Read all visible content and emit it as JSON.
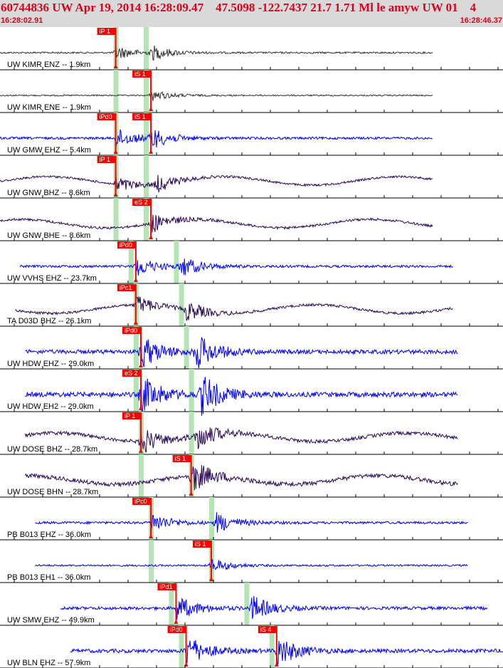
{
  "header": {
    "title": "60744836 UW Apr 19, 2014 16:28:09.47    47.5098 -122.7437 21.7 1.71 Ml le amyw UW 01    4",
    "start_time": "16:28:02.91",
    "end_time": "16:28:46.37"
  },
  "colors": {
    "pick": "#ff0000",
    "window": "#b5e3b5",
    "blue_trace": "#0000ff",
    "dark_trace": "#333333",
    "purple_trace": "#2a0a55"
  },
  "traces": [
    {
      "label": "UW KIMR ENZ -- 1.9km",
      "color": "dark",
      "picks": [
        {
          "text": "iP 1"
        }
      ],
      "start": 0,
      "end": 0.86,
      "events": [
        0.23,
        0.3
      ],
      "amp": 10
    },
    {
      "label": "UW KIMR ENE -- 1.9km",
      "color": "dark",
      "picks": [
        {
          "text": "iS 1"
        }
      ],
      "start": 0,
      "end": 0.86,
      "events": [
        0.3
      ],
      "amp": 8
    },
    {
      "label": "UW GMW EHZ -- 5.4km",
      "color": "blue",
      "picks": [
        {
          "text": "iPd0"
        },
        {
          "text": "iS 1"
        }
      ],
      "start": 0,
      "end": 0.86,
      "events": [
        0.23,
        0.3
      ],
      "amp": 14
    },
    {
      "label": "UW GNW BHZ -- 8.6km",
      "color": "purple",
      "picks": [
        {
          "text": "iP 1"
        }
      ],
      "start": 0,
      "end": 0.86,
      "events": [
        0.23,
        0.31
      ],
      "amp": 12
    },
    {
      "label": "UW GNW BHE -- 8.6km",
      "color": "purple",
      "picks": [
        {
          "text": "eS 2"
        }
      ],
      "start": 0,
      "end": 0.86,
      "events": [
        0.3
      ],
      "amp": 14
    },
    {
      "label": "UW VVHS EHZ -- 23.7km",
      "color": "blue",
      "picks": [
        {
          "text": "iPd0"
        }
      ],
      "start": 0.04,
      "end": 0.9,
      "events": [
        0.27,
        0.36
      ],
      "amp": 14
    },
    {
      "label": "TA D03D BHZ -- 26.1km",
      "color": "purple",
      "picks": [
        {
          "text": "iPc1"
        }
      ],
      "start": 0.03,
      "end": 0.9,
      "events": [
        0.27,
        0.37
      ],
      "amp": 14
    },
    {
      "label": "UW HDW EHZ -- 29.0km",
      "color": "blue",
      "picks": [
        {
          "text": "iPd0"
        }
      ],
      "start": 0.05,
      "end": 0.91,
      "events": [
        0.28,
        0.39
      ],
      "amp": 24
    },
    {
      "label": "UW HDW EH2 -- 29.0km",
      "color": "blue",
      "picks": [
        {
          "text": "eS 2"
        }
      ],
      "start": 0.05,
      "end": 0.91,
      "events": [
        0.28,
        0.4
      ],
      "amp": 28
    },
    {
      "label": "UW DOSE BHZ -- 28.7km",
      "color": "purple",
      "picks": [
        {
          "text": "iP 1"
        }
      ],
      "start": 0.05,
      "end": 0.91,
      "events": [
        0.28,
        0.39
      ],
      "amp": 20
    },
    {
      "label": "UW DOSE BHN -- 28.7km",
      "color": "purple",
      "picks": [
        {
          "text": "iS 1"
        }
      ],
      "start": 0.05,
      "end": 0.91,
      "events": [
        0.38
      ],
      "amp": 24
    },
    {
      "label": "PB B013 EHZ -- 36.0km",
      "color": "blue",
      "picks": [
        {
          "text": "iPc0"
        }
      ],
      "start": 0.07,
      "end": 0.93,
      "events": [
        0.3,
        0.43
      ],
      "amp": 14
    },
    {
      "label": "PB B013 EH1 -- 36.0km",
      "color": "blue",
      "picks": [
        {
          "text": "iS 1"
        }
      ],
      "start": 0.07,
      "end": 0.93,
      "events": [
        0.42
      ],
      "amp": 10
    },
    {
      "label": "UW SMW EHZ -- 49.9km",
      "color": "blue",
      "picks": [
        {
          "text": "iPd1"
        }
      ],
      "start": 0.12,
      "end": 0.97,
      "events": [
        0.35,
        0.5
      ],
      "amp": 18
    },
    {
      "label": "UW BLN EHZ -- 57.9km",
      "color": "blue",
      "picks": [
        {
          "text": "iPd0"
        },
        {
          "text": "iS 4"
        }
      ],
      "start": 0.14,
      "end": 1.0,
      "events": [
        0.37,
        0.55
      ],
      "amp": 22
    }
  ]
}
